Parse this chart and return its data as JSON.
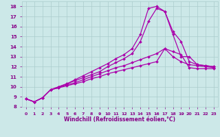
{
  "x": [
    0,
    1,
    2,
    3,
    4,
    5,
    6,
    7,
    8,
    9,
    10,
    11,
    12,
    13,
    14,
    15,
    16,
    17,
    18,
    19,
    20,
    21,
    22,
    23
  ],
  "series": [
    [
      8.8,
      8.5,
      8.9,
      9.7,
      9.9,
      10.1,
      10.3,
      10.5,
      10.8,
      11.0,
      11.3,
      11.5,
      11.7,
      11.9,
      12.1,
      12.3,
      12.5,
      13.8,
      13.5,
      13.2,
      11.9,
      11.8,
      11.8,
      11.8
    ],
    [
      8.8,
      8.5,
      8.9,
      9.7,
      9.9,
      10.2,
      10.4,
      10.7,
      11.0,
      11.3,
      11.6,
      11.9,
      12.1,
      12.4,
      12.7,
      13.0,
      13.3,
      13.8,
      13.0,
      12.5,
      12.2,
      12.1,
      12.0,
      11.9
    ],
    [
      8.8,
      8.5,
      8.9,
      9.7,
      10.0,
      10.3,
      10.6,
      10.9,
      11.2,
      11.5,
      12.0,
      12.4,
      12.8,
      13.3,
      14.5,
      16.5,
      17.8,
      17.5,
      15.2,
      13.0,
      13.0,
      12.2,
      12.1,
      12.0
    ],
    [
      8.8,
      8.5,
      8.9,
      9.7,
      10.0,
      10.3,
      10.7,
      11.1,
      11.5,
      11.9,
      12.3,
      12.8,
      13.2,
      13.8,
      15.2,
      17.8,
      18.0,
      17.5,
      15.5,
      14.5,
      12.5,
      12.2,
      12.1,
      12.0
    ]
  ],
  "line_color": "#aa00aa",
  "marker": "D",
  "markersize": 2.0,
  "linewidth": 0.9,
  "xlabel": "Windchill (Refroidissement éolien,°C)",
  "xlim": [
    -0.5,
    23.5
  ],
  "ylim": [
    8,
    18.5
  ],
  "yticks": [
    8,
    9,
    10,
    11,
    12,
    13,
    14,
    15,
    16,
    17,
    18
  ],
  "xticks": [
    0,
    1,
    2,
    3,
    4,
    5,
    6,
    7,
    8,
    9,
    10,
    11,
    12,
    13,
    14,
    15,
    16,
    17,
    18,
    19,
    20,
    21,
    22,
    23
  ],
  "bg_color": "#cce8e8",
  "grid_color": "#aacccc",
  "tick_label_color": "#880088",
  "xlabel_color": "#880088"
}
